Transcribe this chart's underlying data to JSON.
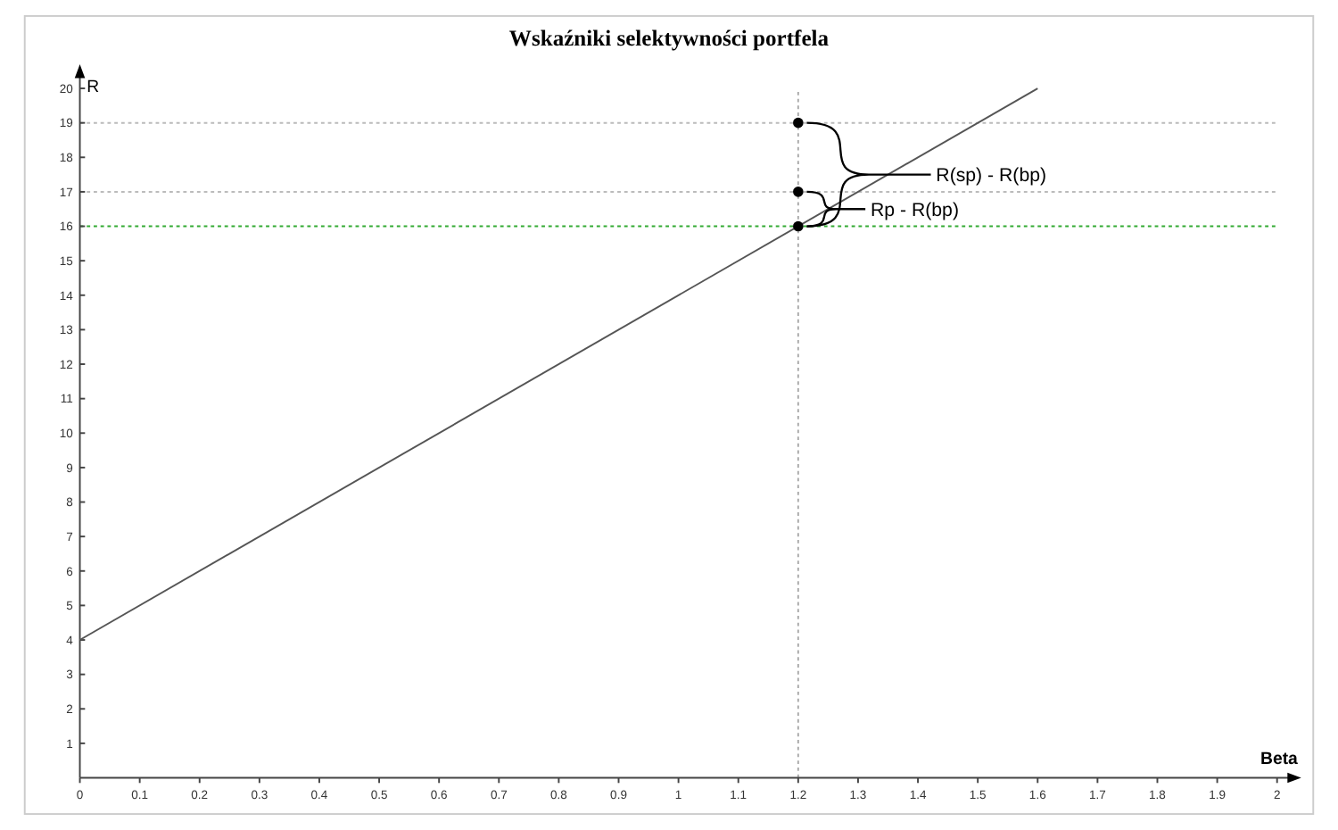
{
  "chart_data": {
    "type": "line",
    "title": "Wskaźniki selektywności portfela",
    "xlabel": "Beta",
    "ylabel": "R",
    "xlim": [
      0,
      2
    ],
    "ylim": [
      0,
      20
    ],
    "xticks": [
      0,
      0.1,
      0.2,
      0.3,
      0.4,
      0.5,
      0.6,
      0.7,
      0.8,
      0.9,
      1,
      1.1,
      1.2,
      1.3,
      1.4,
      1.5,
      1.6,
      1.7,
      1.8,
      1.9,
      2
    ],
    "yticks": [
      1,
      2,
      3,
      4,
      5,
      6,
      7,
      8,
      9,
      10,
      11,
      12,
      13,
      14,
      15,
      16,
      17,
      18,
      19,
      20
    ],
    "grid": false,
    "series": [
      {
        "color": "#555555",
        "x": [
          0,
          1.6
        ],
        "values": [
          4,
          20
        ],
        "marker": "none",
        "line_style": "solid"
      },
      {
        "type": "scatter",
        "color": "#000000",
        "x": [
          1.2,
          1.2,
          1.2
        ],
        "values": [
          19,
          17,
          16
        ],
        "marker": "circle"
      }
    ],
    "ref_lines": [
      {
        "axis": "y",
        "value": 19,
        "color": "#bbbbbb",
        "line_style": "dotted"
      },
      {
        "axis": "y",
        "value": 17,
        "color": "#bbbbbb",
        "line_style": "dotted"
      },
      {
        "axis": "y",
        "value": 16,
        "color": "#33aa33",
        "line_style": "dotted"
      },
      {
        "axis": "x",
        "value": 1.2,
        "color": "#aaaaaa",
        "line_style": "dotted"
      }
    ],
    "annotations": [
      {
        "text": "R(sp) - R(bp)",
        "x": 1.2,
        "y": 19
      },
      {
        "text": "Rp - R(bp)",
        "x": 1.2,
        "y": 17
      }
    ]
  }
}
